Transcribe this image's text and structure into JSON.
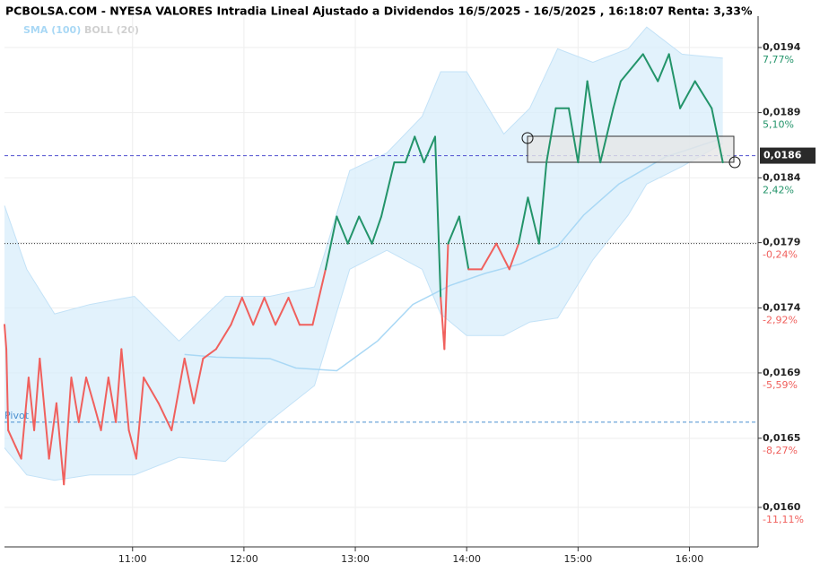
{
  "chart_data": {
    "type": "line",
    "title": "PCBOLSA.COM - NYESA VALORES Intradia Lineal Ajustado a Dividendos 16/5/2025 - 16/5/2025 , 16:18:07 Renta: 3,33%",
    "xlim": [
      591,
      997
    ],
    "xticks": [
      {
        "value": 660,
        "label": "11:00"
      },
      {
        "value": 720,
        "label": "12:00"
      },
      {
        "value": 780,
        "label": "13:00"
      },
      {
        "value": 840,
        "label": "14:00"
      },
      {
        "value": 900,
        "label": "15:00"
      },
      {
        "value": 960,
        "label": "16:00"
      }
    ],
    "ylim": [
      0.015708,
      0.019631
    ],
    "yticks": [
      {
        "value": 0.019399,
        "label": "0,0194"
      },
      {
        "value": 0.018918,
        "label": "0,0189"
      },
      {
        "value": 0.018436,
        "label": "0,0184"
      },
      {
        "value": 0.017957,
        "label": "0,0179"
      },
      {
        "value": 0.017474,
        "label": "0,0174"
      },
      {
        "value": 0.016994,
        "label": "0,0169"
      },
      {
        "value": 0.016511,
        "label": "0,0165"
      },
      {
        "value": 0.016,
        "label": "0,0160"
      }
    ],
    "y2lim": [
      -12.73,
      9.06
    ],
    "y2ticks": [
      {
        "value": 7.77,
        "label": "7,77%"
      },
      {
        "value": 5.1,
        "label": "5,10%"
      },
      {
        "value": 2.42,
        "label": "2,42%"
      },
      {
        "value": -0.24,
        "label": "-0,24%"
      },
      {
        "value": -2.92,
        "label": "-2,92%"
      },
      {
        "value": -5.59,
        "label": "-5,59%"
      },
      {
        "value": -8.27,
        "label": "-8,27%"
      },
      {
        "value": -11.11,
        "label": "-11,11%"
      }
    ],
    "grid": true,
    "up_color": "#23946a",
    "down_color": "#f0605d",
    "reference": 0.01795,
    "price": {
      "x": [
        591,
        592,
        593,
        597,
        600,
        604,
        607,
        610,
        615,
        619,
        623,
        627,
        631,
        635,
        639,
        643,
        647,
        651,
        654,
        658,
        662,
        666,
        674,
        681,
        688,
        693,
        698,
        705,
        713,
        719,
        725,
        731,
        737,
        744,
        750,
        757,
        764,
        770,
        776,
        782,
        789,
        794,
        801,
        807,
        812,
        817,
        823,
        826,
        828,
        830,
        836,
        841,
        848,
        856,
        863,
        868,
        873,
        879,
        883,
        888,
        895,
        900,
        905,
        912,
        919,
        923,
        935,
        943,
        949,
        955,
        963,
        972,
        978
      ],
      "values": [
        0.01735,
        0.01717,
        0.01657,
        0.01645,
        0.01636,
        0.01696,
        0.01657,
        0.0171,
        0.01636,
        0.01677,
        0.01617,
        0.01696,
        0.01663,
        0.01696,
        0.01677,
        0.01657,
        0.01696,
        0.01663,
        0.01717,
        0.01657,
        0.01636,
        0.01696,
        0.01677,
        0.01657,
        0.0171,
        0.01677,
        0.0171,
        0.01717,
        0.01735,
        0.01755,
        0.01735,
        0.01755,
        0.01735,
        0.01755,
        0.01735,
        0.01735,
        0.01776,
        0.01815,
        0.01795,
        0.01815,
        0.01795,
        0.01815,
        0.01855,
        0.01855,
        0.01874,
        0.01855,
        0.01874,
        0.01755,
        0.01717,
        0.01795,
        0.01815,
        0.01776,
        0.01776,
        0.01795,
        0.01776,
        0.01795,
        0.01829,
        0.01795,
        0.01855,
        0.01895,
        0.01895,
        0.01855,
        0.01915,
        0.01855,
        0.01895,
        0.01915,
        0.01935,
        0.01915,
        0.01935,
        0.01895,
        0.01915,
        0.01895,
        0.01855
      ]
    },
    "sma": {
      "name": "SMA (100)",
      "color": "#a9d8f5",
      "x": [
        688,
        705,
        734,
        748,
        770,
        792,
        811,
        831,
        850,
        869,
        889,
        903,
        922,
        947,
        976
      ],
      "values": [
        0.01713,
        0.01711,
        0.0171,
        0.01703,
        0.01701,
        0.01723,
        0.0175,
        0.01764,
        0.01773,
        0.0178,
        0.01793,
        0.01816,
        0.01839,
        0.01859,
        0.01872
      ]
    },
    "boll": {
      "name": "BOLL (20)",
      "color": "#d6ecfb",
      "x": [
        591,
        603,
        618,
        637,
        661,
        685,
        710,
        734,
        758,
        777,
        797,
        816,
        826,
        840,
        860,
        874,
        889,
        908,
        927,
        937,
        956,
        978
      ],
      "upper": [
        0.01823,
        0.01776,
        0.01743,
        0.0175,
        0.01756,
        0.01723,
        0.01756,
        0.01756,
        0.01763,
        0.01849,
        0.01862,
        0.01889,
        0.01922,
        0.01922,
        0.01876,
        0.01895,
        0.01939,
        0.01929,
        0.01939,
        0.01955,
        0.01935,
        0.01932
      ],
      "lower": [
        0.01644,
        0.01624,
        0.0162,
        0.01624,
        0.01624,
        0.01637,
        0.01634,
        0.01664,
        0.0169,
        0.01776,
        0.0179,
        0.01776,
        0.01743,
        0.01727,
        0.01727,
        0.01737,
        0.0174,
        0.01783,
        0.01816,
        0.01839,
        0.01852,
        0.01869
      ]
    },
    "lines": [
      {
        "value": 0.0186,
        "label": "0,0186",
        "color": "#5050d0"
      },
      {
        "value": 0.01795,
        "color": "#333333"
      },
      {
        "value": 0.01663,
        "label": "Pivot",
        "color": "#4a90d0"
      }
    ]
  }
}
